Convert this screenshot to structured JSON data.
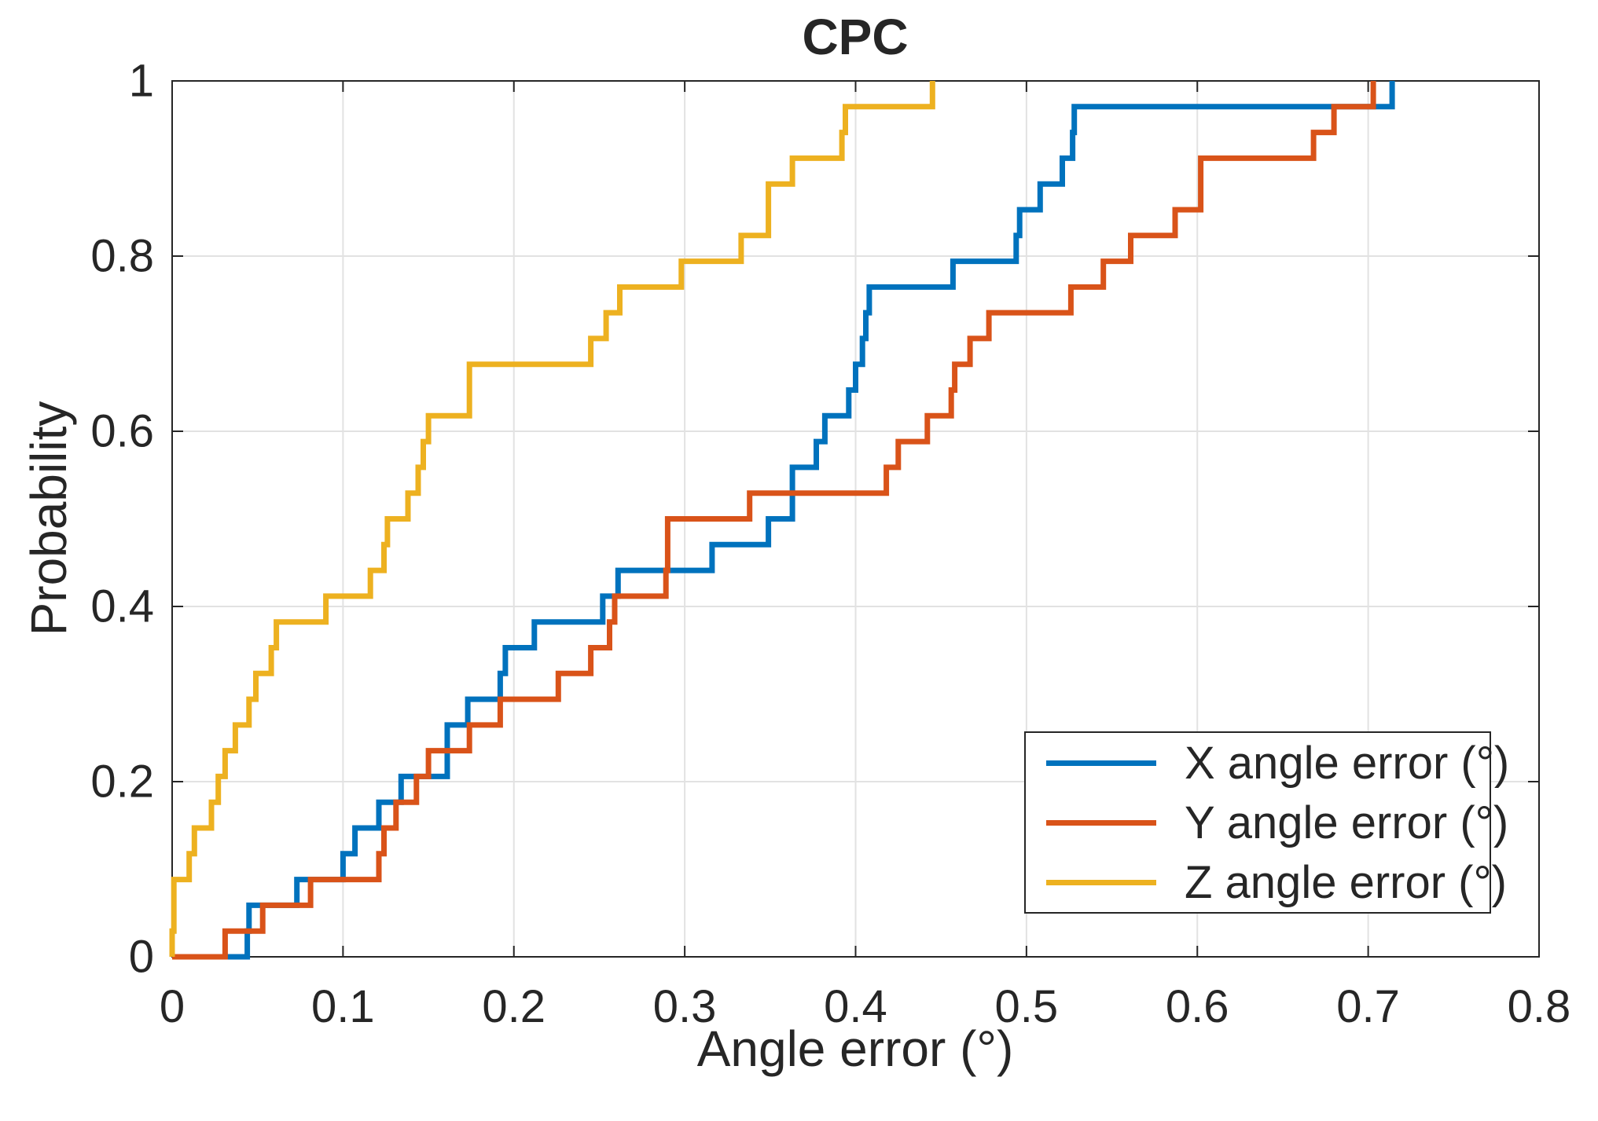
{
  "title": "CPC",
  "axes": {
    "xlabel": "Angle error (°)",
    "ylabel": "Probability",
    "xlim": [
      0,
      0.8
    ],
    "ylim": [
      0,
      1
    ],
    "xtick_labels": [
      "0",
      "0.1",
      "0.2",
      "0.3",
      "0.4",
      "0.5",
      "0.6",
      "0.7",
      "0.8"
    ],
    "ytick_labels": [
      "0",
      "0.2",
      "0.4",
      "0.6",
      "0.8",
      "1"
    ]
  },
  "legend": {
    "position": "lower right",
    "entries": [
      {
        "label": "X angle error (°)",
        "color": "#0072BD"
      },
      {
        "label": "Y angle error (°)",
        "color": "#D95319"
      },
      {
        "label": "Z angle error (°)",
        "color": "#EDB120"
      }
    ]
  },
  "style": {
    "axis_color": "#262626",
    "grid_color": "#E2E2E2",
    "background": "#FFFFFF",
    "line_width": 7,
    "tick_length": 14
  },
  "chart_data": {
    "type": "line",
    "variant": "step-ecdf-stairs",
    "title": "CPC",
    "xlabel": "Angle error (°)",
    "ylabel": "Probability",
    "xlim": [
      0,
      0.8
    ],
    "ylim": [
      0,
      1
    ],
    "xticks": [
      0,
      0.1,
      0.2,
      0.3,
      0.4,
      0.5,
      0.6,
      0.7,
      0.8
    ],
    "yticks": [
      0,
      0.2,
      0.4,
      0.6,
      0.8,
      1
    ],
    "grid": true,
    "legend_position": "lower right",
    "n_samples_per_series": 34,
    "step_height": 0.0294,
    "series": [
      {
        "name": "X angle error (°)",
        "color": "#0072BD",
        "jump_x": [
          0.044,
          0.045,
          0.073,
          0.1,
          0.107,
          0.121,
          0.134,
          0.161,
          0.161,
          0.173,
          0.192,
          0.195,
          0.212,
          0.252,
          0.261,
          0.316,
          0.349,
          0.363,
          0.363,
          0.377,
          0.382,
          0.396,
          0.4,
          0.404,
          0.406,
          0.408,
          0.457,
          0.494,
          0.496,
          0.508,
          0.521,
          0.527,
          0.528,
          0.714
        ]
      },
      {
        "name": "Y angle error (°)",
        "color": "#D95319",
        "jump_x": [
          0.031,
          0.053,
          0.081,
          0.121,
          0.124,
          0.131,
          0.143,
          0.15,
          0.174,
          0.192,
          0.226,
          0.245,
          0.256,
          0.259,
          0.289,
          0.29,
          0.29,
          0.338,
          0.418,
          0.425,
          0.442,
          0.456,
          0.458,
          0.467,
          0.478,
          0.526,
          0.545,
          0.561,
          0.587,
          0.602,
          0.602,
          0.668,
          0.68,
          0.703
        ]
      },
      {
        "name": "Z angle error (°)",
        "color": "#EDB120",
        "jump_x": [
          0.0,
          0.001,
          0.001,
          0.01,
          0.013,
          0.023,
          0.027,
          0.031,
          0.037,
          0.045,
          0.049,
          0.058,
          0.061,
          0.09,
          0.116,
          0.124,
          0.126,
          0.138,
          0.144,
          0.147,
          0.15,
          0.174,
          0.174,
          0.245,
          0.254,
          0.262,
          0.298,
          0.333,
          0.349,
          0.349,
          0.363,
          0.392,
          0.394,
          0.445
        ]
      }
    ]
  }
}
